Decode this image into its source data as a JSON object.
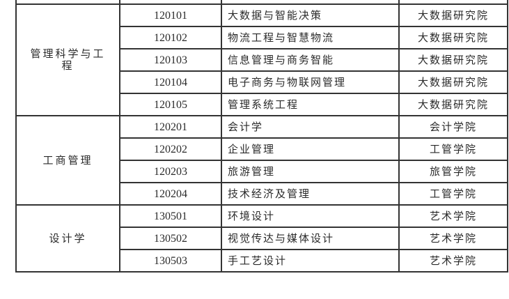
{
  "table": {
    "groups": [
      {
        "discipline": "管理科学与工程",
        "rows": [
          {
            "code": "120101",
            "major": "大数据与智能决策",
            "college": "大数据研究院"
          },
          {
            "code": "120102",
            "major": "物流工程与智慧物流",
            "college": "大数据研究院"
          },
          {
            "code": "120103",
            "major": "信息管理与商务智能",
            "college": "大数据研究院"
          },
          {
            "code": "120104",
            "major": "电子商务与物联网管理",
            "college": "大数据研究院"
          },
          {
            "code": "120105",
            "major": "管理系统工程",
            "college": "大数据研究院"
          }
        ]
      },
      {
        "discipline": "工商管理",
        "rows": [
          {
            "code": "120201",
            "major": "会计学",
            "college": "会计学院"
          },
          {
            "code": "120202",
            "major": "企业管理",
            "college": "工管学院"
          },
          {
            "code": "120203",
            "major": "旅游管理",
            "college": "旅管学院"
          },
          {
            "code": "120204",
            "major": "技术经济及管理",
            "college": "工管学院"
          }
        ]
      },
      {
        "discipline": "设计学",
        "rows": [
          {
            "code": "130501",
            "major": "环境设计",
            "college": "艺术学院"
          },
          {
            "code": "130502",
            "major": "视觉传达与媒体设计",
            "college": "艺术学院"
          },
          {
            "code": "130503",
            "major": "手工艺设计",
            "college": "艺术学院"
          }
        ]
      }
    ]
  }
}
